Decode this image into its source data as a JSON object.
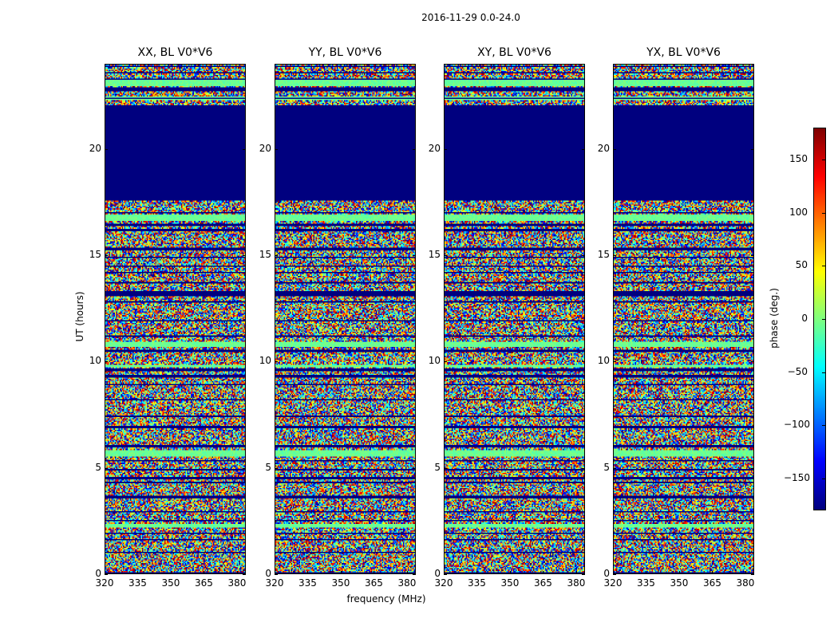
{
  "chart_data": {
    "type": "heatmap",
    "title": "2016-11-29 0.0-24.0",
    "xlabel": "frequency (MHz)",
    "ylabel": "UT (hours)",
    "xlim": [
      320,
      384
    ],
    "ylim": [
      0,
      24
    ],
    "xticks": [
      "320",
      "335",
      "350",
      "365",
      "380"
    ],
    "xtick_values": [
      320,
      335,
      350,
      365,
      380
    ],
    "yticks": [
      "0",
      "5",
      "10",
      "15",
      "20"
    ],
    "ytick_values": [
      0,
      5,
      10,
      15,
      20
    ],
    "panels": [
      {
        "title": "XX, BL V0*V6",
        "seed": 11
      },
      {
        "title": "YY, BL V0*V6",
        "seed": 23
      },
      {
        "title": "XY, BL V0*V6",
        "seed": 37
      },
      {
        "title": "YX, BL V0*V6",
        "seed": 51
      }
    ],
    "flagged_hours": [
      [
        17.55,
        22.1
      ],
      [
        22.75,
        22.95
      ],
      [
        23.55,
        23.65
      ],
      [
        13.05,
        13.35
      ],
      [
        16.15,
        16.25
      ],
      [
        12.78,
        12.86
      ],
      [
        0,
        0.05
      ]
    ],
    "flag_lines_hours": [
      23.9,
      23.3,
      22.4,
      17.0,
      16.45,
      15.3,
      14.9,
      14.5,
      14.2,
      13.7,
      11.9,
      11.2,
      10.5,
      9.6,
      9.3,
      8.9,
      8.2,
      7.4,
      6.9,
      6.0,
      5.3,
      4.9,
      4.5,
      4.3,
      3.6,
      2.9,
      2.5,
      1.9,
      1.6,
      1.0
    ],
    "uniform_bands_hours": [
      [
        16.6,
        16.9
      ],
      [
        10.65,
        10.9
      ],
      [
        5.5,
        5.85
      ],
      [
        2.15,
        2.35
      ],
      [
        22.3,
        22.5
      ],
      [
        23.0,
        23.25
      ],
      [
        9.7,
        9.85
      ]
    ],
    "colorbar": {
      "label": "phase (deg.)",
      "colormap": "jet",
      "range": [
        -180,
        180
      ],
      "ticks": [
        "150",
        "100",
        "50",
        "0",
        "−50",
        "−100",
        "−150"
      ],
      "tick_values": [
        150,
        100,
        50,
        0,
        -50,
        -100,
        -150
      ]
    }
  }
}
